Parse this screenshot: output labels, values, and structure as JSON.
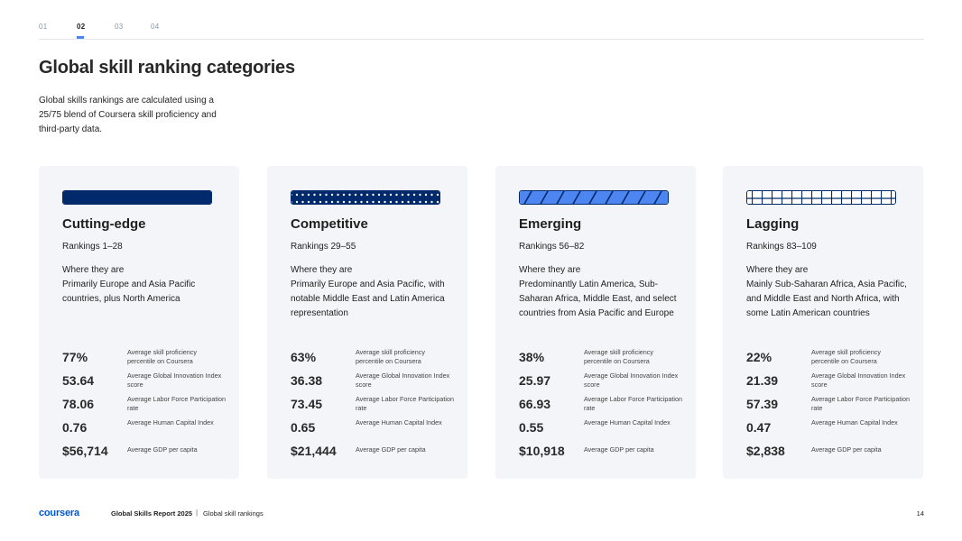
{
  "nav": {
    "tabs": [
      "01",
      "02",
      "03",
      "04"
    ],
    "active_tab": "02"
  },
  "page": {
    "title": "Global skill ranking categories",
    "intro": "Global skills rankings are calculated using a 25/75 blend of Coursera skill proficiency and third-party data."
  },
  "stat_labels": [
    "Average skill proficiency percentile on Coursera",
    "Average Global Innovation Index score",
    "Average Labor Force Participation rate",
    "Average Human Capital Index",
    "Average GDP per capita"
  ],
  "categories": [
    {
      "title": "Cutting-edge",
      "rankings": "Rankings 1–28",
      "where_label": "Where they are",
      "where": "Primarily Europe and Asia Pacific countries, plus North America",
      "pattern": "solid",
      "stats": [
        "77%",
        "53.64",
        "78.06",
        "0.76",
        "$56,714"
      ]
    },
    {
      "title": "Competitive",
      "rankings": "Rankings 29–55",
      "where_label": "Where they are",
      "where": "Primarily Europe and Asia Pacific, with notable Middle East and Latin America representation",
      "pattern": "dots",
      "stats": [
        "63%",
        "36.38",
        "73.45",
        "0.65",
        "$21,444"
      ]
    },
    {
      "title": "Emerging",
      "rankings": "Rankings 56–82",
      "where_label": "Where they are",
      "where": "Predominantly Latin America, Sub-Saharan Africa, Middle East, and select countries from Asia Pacific and Europe",
      "pattern": "stripes",
      "stats": [
        "38%",
        "25.97",
        "66.93",
        "0.55",
        "$10,918"
      ]
    },
    {
      "title": "Lagging",
      "rankings": "Rankings 83–109",
      "where_label": "Where they are",
      "where": "Mainly Sub-Saharan Africa, Asia Pacific, and Middle East and North Africa, with some Latin American countries",
      "pattern": "grid",
      "stats": [
        "22%",
        "21.39",
        "57.39",
        "0.47",
        "$2,838"
      ]
    }
  ],
  "footer": {
    "logo": "coursera",
    "report": "Global Skills Report 2025",
    "separator": "|",
    "section": "Global skill rankings",
    "page_number": "14"
  },
  "colors": {
    "navy": "#002a6b",
    "blue": "#4d86f0",
    "card_bg": "#f3f5f8",
    "brand": "#0056d2"
  }
}
